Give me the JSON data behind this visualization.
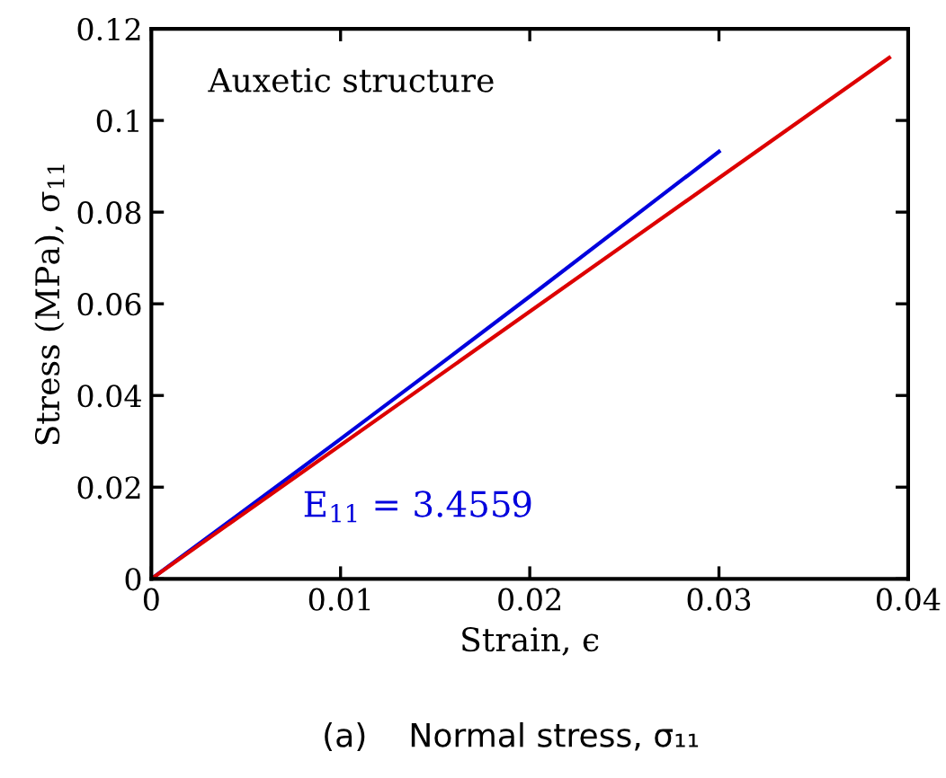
{
  "chart_data": {
    "type": "line",
    "xlabel": "Strain, ϵ",
    "ylabel": "Stress (MPa), σ$_{11}$",
    "xlim": [
      0,
      0.04
    ],
    "ylim": [
      0,
      0.12
    ],
    "xticks": [
      0,
      0.01,
      0.02,
      0.03,
      0.04
    ],
    "yticks": [
      0,
      0.02,
      0.04,
      0.06,
      0.08,
      {
        "value": 0.1,
        "label": "0.1"
      },
      0.12
    ],
    "grid": false,
    "legend": false,
    "marker": "none",
    "line_style": "solid",
    "series": [
      {
        "color": "#0000dd",
        "x": [
          0,
          0.005,
          0.01,
          0.015,
          0.02,
          0.025,
          0.03
        ],
        "values": [
          0,
          0.0152,
          0.0305,
          0.046,
          0.0616,
          0.0774,
          0.0932
        ]
      },
      {
        "color": "#dd0000",
        "x": [
          0,
          0.039
        ],
        "values": [
          0,
          0.1137
        ]
      }
    ],
    "annotations": [
      "Auxetic structure",
      "E$_{11}$ = 3.4559",
      "(a)    Normal stress, σ₁₁"
    ]
  }
}
